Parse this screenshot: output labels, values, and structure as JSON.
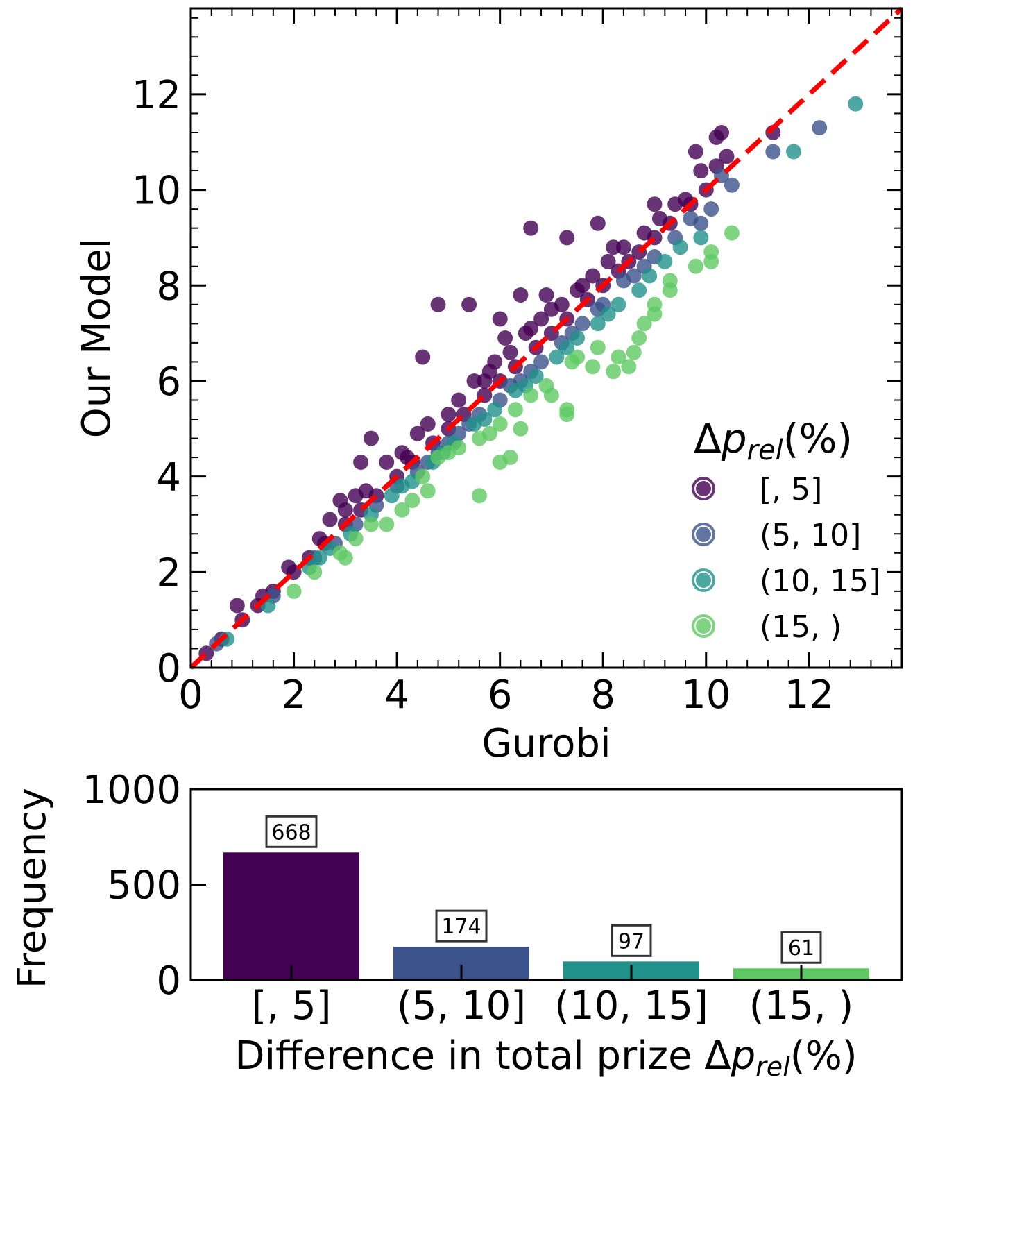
{
  "chart_data": [
    {
      "type": "scatter",
      "xlabel": "Gurobi",
      "ylabel": "Our Model",
      "xlim": [
        0,
        13.8
      ],
      "ylim": [
        0,
        13.8
      ],
      "xticks": [
        0,
        2,
        4,
        6,
        8,
        10,
        12
      ],
      "yticks": [
        0,
        2,
        4,
        6,
        8,
        10,
        12
      ],
      "xtick_labels": [
        "0",
        "2",
        "4",
        "6",
        "8",
        "10",
        "12"
      ],
      "ytick_labels": [
        "0",
        "2",
        "4",
        "6",
        "8",
        "10",
        "12"
      ],
      "grid": false,
      "reference_line": {
        "style": "dashed",
        "color": "#ff0000",
        "from": [
          0,
          0
        ],
        "to": [
          13.8,
          13.8
        ]
      },
      "legend": {
        "position": "bottom-right",
        "title_symbol": "Δ",
        "title_var": "p",
        "title_sub": "rel",
        "title_suffix": "(%)",
        "entries": [
          "[, 5]",
          "(5, 10]",
          "(10, 15]",
          "(15, )"
        ]
      },
      "series": [
        {
          "name": "[, 5]",
          "color": "#440154",
          "points": [
            [
              4.8,
              7.6
            ],
            [
              5.4,
              7.6
            ],
            [
              6.6,
              9.2
            ],
            [
              7.3,
              9.0
            ],
            [
              7.9,
              9.3
            ],
            [
              4.5,
              6.5
            ],
            [
              3.5,
              4.8
            ],
            [
              3.3,
              4.3
            ],
            [
              3.8,
              4.3
            ],
            [
              5.2,
              5.6
            ],
            [
              6.1,
              6.9
            ],
            [
              6.0,
              7.3
            ],
            [
              6.4,
              7.8
            ],
            [
              9.0,
              9.7
            ],
            [
              9.8,
              10.8
            ],
            [
              10.3,
              11.2
            ],
            [
              10.2,
              11.1
            ],
            [
              11.3,
              11.2
            ],
            [
              9.9,
              10.4
            ],
            [
              10.4,
              10.7
            ],
            [
              0.9,
              1.3
            ],
            [
              1.9,
              2.1
            ],
            [
              2.9,
              3.5
            ],
            [
              3.2,
              3.6
            ],
            [
              2.7,
              3.1
            ],
            [
              4.2,
              4.4
            ],
            [
              4.6,
              5.1
            ],
            [
              5.0,
              5.3
            ],
            [
              5.7,
              6.0
            ],
            [
              6.9,
              7.8
            ],
            [
              8.2,
              8.8
            ],
            [
              8.5,
              8.5
            ],
            [
              9.6,
              9.8
            ],
            [
              10.2,
              10.5
            ],
            [
              0.3,
              0.3
            ],
            [
              0.6,
              0.6
            ],
            [
              1.0,
              1.0
            ],
            [
              1.3,
              1.3
            ],
            [
              1.6,
              1.6
            ],
            [
              2.0,
              2.0
            ],
            [
              2.3,
              2.3
            ],
            [
              2.6,
              2.6
            ],
            [
              3.0,
              3.0
            ],
            [
              3.3,
              3.3
            ],
            [
              3.6,
              3.6
            ],
            [
              4.0,
              4.0
            ],
            [
              4.3,
              4.3
            ],
            [
              4.7,
              4.7
            ],
            [
              5.0,
              5.0
            ],
            [
              5.3,
              5.3
            ],
            [
              5.7,
              5.7
            ],
            [
              6.0,
              6.0
            ],
            [
              6.3,
              6.3
            ],
            [
              6.7,
              6.7
            ],
            [
              7.0,
              7.0
            ],
            [
              7.3,
              7.3
            ],
            [
              7.7,
              7.7
            ],
            [
              8.0,
              8.0
            ],
            [
              8.3,
              8.3
            ],
            [
              8.7,
              8.7
            ],
            [
              9.0,
              9.0
            ],
            [
              9.3,
              9.3
            ],
            [
              9.7,
              9.7
            ],
            [
              10.0,
              10.0
            ],
            [
              4.1,
              4.5
            ],
            [
              4.4,
              4.9
            ],
            [
              5.5,
              6.0
            ],
            [
              5.9,
              6.4
            ],
            [
              6.2,
              6.6
            ],
            [
              6.5,
              7.0
            ],
            [
              6.8,
              7.3
            ],
            [
              7.2,
              7.6
            ],
            [
              7.5,
              7.9
            ],
            [
              7.8,
              8.2
            ],
            [
              8.1,
              8.5
            ],
            [
              8.4,
              8.8
            ],
            [
              8.8,
              9.1
            ],
            [
              9.1,
              9.4
            ],
            [
              9.4,
              9.7
            ],
            [
              3.0,
              3.3
            ],
            [
              3.4,
              3.7
            ],
            [
              2.5,
              2.7
            ],
            [
              1.4,
              1.5
            ],
            [
              7.0,
              7.5
            ],
            [
              7.6,
              8.0
            ],
            [
              6.6,
              7.1
            ],
            [
              5.8,
              6.2
            ]
          ]
        },
        {
          "name": "(5, 10]",
          "color": "#3b528b",
          "points": [
            [
              11.3,
              10.8
            ],
            [
              12.2,
              11.3
            ],
            [
              10.5,
              10.1
            ],
            [
              10.3,
              10.3
            ],
            [
              9.7,
              9.4
            ],
            [
              9.4,
              9.0
            ],
            [
              8.8,
              8.4
            ],
            [
              8.4,
              8.1
            ],
            [
              8.0,
              7.6
            ],
            [
              7.6,
              7.2
            ],
            [
              7.2,
              6.8
            ],
            [
              6.8,
              6.4
            ],
            [
              6.4,
              6.0
            ],
            [
              6.0,
              5.6
            ],
            [
              5.6,
              5.3
            ],
            [
              5.2,
              4.9
            ],
            [
              4.8,
              4.5
            ],
            [
              4.4,
              4.1
            ],
            [
              4.0,
              3.8
            ],
            [
              3.6,
              3.4
            ],
            [
              3.2,
              3.0
            ],
            [
              2.8,
              2.6
            ],
            [
              2.4,
              2.3
            ],
            [
              1.6,
              1.5
            ],
            [
              0.5,
              0.5
            ],
            [
              9.0,
              8.6
            ],
            [
              8.6,
              8.2
            ],
            [
              7.9,
              7.5
            ],
            [
              7.4,
              7.0
            ],
            [
              6.6,
              6.2
            ],
            [
              6.2,
              5.9
            ],
            [
              5.4,
              5.1
            ],
            [
              5.0,
              4.7
            ],
            [
              4.6,
              4.3
            ],
            [
              10.1,
              9.6
            ],
            [
              9.9,
              9.3
            ]
          ]
        },
        {
          "name": "(10, 15]",
          "color": "#21918c",
          "points": [
            [
              12.9,
              11.8
            ],
            [
              11.7,
              10.8
            ],
            [
              9.9,
              9.0
            ],
            [
              9.2,
              8.5
            ],
            [
              8.7,
              7.9
            ],
            [
              8.3,
              7.6
            ],
            [
              7.9,
              7.2
            ],
            [
              7.5,
              6.9
            ],
            [
              7.1,
              6.5
            ],
            [
              6.7,
              6.1
            ],
            [
              6.3,
              5.8
            ],
            [
              5.9,
              5.4
            ],
            [
              5.5,
              5.1
            ],
            [
              5.1,
              4.7
            ],
            [
              4.7,
              4.3
            ],
            [
              4.3,
              3.9
            ],
            [
              3.9,
              3.6
            ],
            [
              3.5,
              3.2
            ],
            [
              3.1,
              2.8
            ],
            [
              2.7,
              2.5
            ],
            [
              2.3,
              2.1
            ],
            [
              1.5,
              1.3
            ],
            [
              0.7,
              0.6
            ],
            [
              9.5,
              8.8
            ],
            [
              8.9,
              8.2
            ],
            [
              8.1,
              7.4
            ],
            [
              7.3,
              6.7
            ],
            [
              6.5,
              5.9
            ],
            [
              5.7,
              5.2
            ],
            [
              4.9,
              4.5
            ],
            [
              4.1,
              3.8
            ],
            [
              2.5,
              2.3
            ]
          ]
        },
        {
          "name": "(15, )",
          "color": "#5ec962",
          "points": [
            [
              10.5,
              9.1
            ],
            [
              9.8,
              8.4
            ],
            [
              10.1,
              8.5
            ],
            [
              10.1,
              8.7
            ],
            [
              9.3,
              8.1
            ],
            [
              9.0,
              7.6
            ],
            [
              9.0,
              7.4
            ],
            [
              8.7,
              6.9
            ],
            [
              8.3,
              6.5
            ],
            [
              8.2,
              6.2
            ],
            [
              8.5,
              6.3
            ],
            [
              8.6,
              6.6
            ],
            [
              7.9,
              6.7
            ],
            [
              7.5,
              6.5
            ],
            [
              7.4,
              6.4
            ],
            [
              7.3,
              5.4
            ],
            [
              7.3,
              5.3
            ],
            [
              6.9,
              5.9
            ],
            [
              6.6,
              5.7
            ],
            [
              6.3,
              5.4
            ],
            [
              6.0,
              5.1
            ],
            [
              5.8,
              4.9
            ],
            [
              5.6,
              4.8
            ],
            [
              5.6,
              3.6
            ],
            [
              5.2,
              4.6
            ],
            [
              5.0,
              4.5
            ],
            [
              4.8,
              4.4
            ],
            [
              4.6,
              3.7
            ],
            [
              4.5,
              4.0
            ],
            [
              4.3,
              3.5
            ],
            [
              4.1,
              3.3
            ],
            [
              3.8,
              3.0
            ],
            [
              3.5,
              3.0
            ],
            [
              3.2,
              2.7
            ],
            [
              3.0,
              2.3
            ],
            [
              2.9,
              2.4
            ],
            [
              2.4,
              2.0
            ],
            [
              2.0,
              1.6
            ],
            [
              6.2,
              4.4
            ],
            [
              6.0,
              4.3
            ],
            [
              6.4,
              5.0
            ],
            [
              7.0,
              5.7
            ],
            [
              7.8,
              6.3
            ],
            [
              8.8,
              7.2
            ],
            [
              9.3,
              7.9
            ]
          ]
        }
      ]
    },
    {
      "type": "bar",
      "xlabel_prefix": "Difference in total prize ",
      "xlabel_symbol": "Δ",
      "xlabel_var": "p",
      "xlabel_sub": "rel",
      "xlabel_suffix": "(%)",
      "ylabel": "Frequency",
      "ylim": [
        0,
        1000
      ],
      "yticks": [
        0,
        500,
        1000
      ],
      "ytick_labels": [
        "0",
        "500",
        "1000"
      ],
      "categories": [
        "[, 5]",
        "(5, 10]",
        "(10, 15]",
        "(15, )"
      ],
      "values": [
        668,
        174,
        97,
        61
      ],
      "value_labels": [
        "668",
        "174",
        "97",
        "61"
      ],
      "colors": [
        "#440154",
        "#3b528b",
        "#21918c",
        "#5ec962"
      ],
      "grid": false
    }
  ]
}
